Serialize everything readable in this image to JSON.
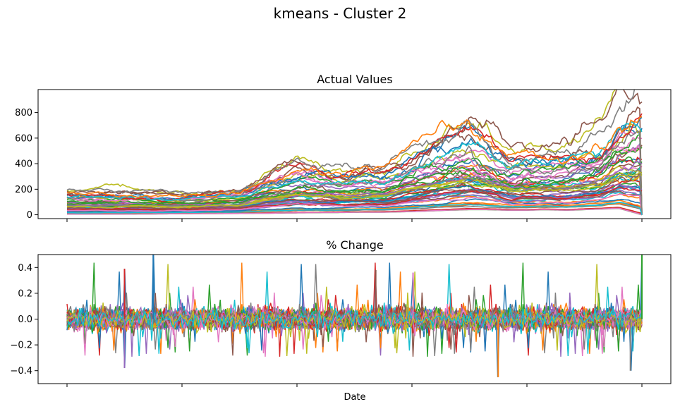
{
  "figure": {
    "title": "kmeans - Cluster 2",
    "xlabel": "Date"
  },
  "colors": [
    "#1f77b4",
    "#ff7f0e",
    "#2ca02c",
    "#d62728",
    "#9467bd",
    "#8c564b",
    "#e377c2",
    "#7f7f7f",
    "#bcbd22",
    "#17becf"
  ],
  "chart_data": [
    {
      "type": "line",
      "title": "Actual Values",
      "ylim": [
        -30,
        980
      ],
      "yticks": [
        "0",
        "200",
        "400",
        "600",
        "800"
      ],
      "ytick_values": [
        0,
        200,
        400,
        600,
        800
      ],
      "x_major_ticks": 6,
      "x_tick_labels_visible": false,
      "grid": false,
      "series_count_approx": 60,
      "envelope": {
        "x_fraction": [
          0,
          0.1,
          0.2,
          0.3,
          0.35,
          0.4,
          0.48,
          0.52,
          0.55,
          0.6,
          0.63,
          0.66,
          0.7,
          0.73,
          0.77,
          0.8,
          0.83,
          0.87,
          0.9,
          0.93,
          0.96,
          1.0
        ],
        "max": [
          190,
          190,
          160,
          200,
          330,
          420,
          350,
          380,
          360,
          500,
          560,
          620,
          720,
          640,
          500,
          520,
          500,
          520,
          560,
          600,
          820,
          950
        ],
        "min": [
          5,
          5,
          8,
          10,
          12,
          15,
          18,
          20,
          20,
          25,
          30,
          35,
          40,
          40,
          35,
          35,
          40,
          35,
          40,
          45,
          50,
          0
        ]
      }
    },
    {
      "type": "line",
      "title": "% Change",
      "ylim": [
        -0.5,
        0.5
      ],
      "yticks": [
        "0.4",
        "0.2",
        "0.0",
        "−0.2",
        "−0.4"
      ],
      "ytick_values": [
        0.4,
        0.2,
        0.0,
        -0.2,
        -0.4
      ],
      "x_major_ticks": 6,
      "x_tick_labels_visible": false,
      "grid": false,
      "series_count_approx": 60,
      "range": {
        "typical_band": [
          -0.1,
          0.1
        ],
        "spikes": [
          {
            "x_fraction": 0.15,
            "value": 0.52
          },
          {
            "x_fraction": 0.75,
            "value": -0.45
          },
          {
            "x_fraction": 1.0,
            "value": 0.52
          },
          {
            "x_fraction": 0.1,
            "value": 0.39
          },
          {
            "x_fraction": 0.1,
            "value": -0.38
          },
          {
            "x_fraction": 0.537,
            "value": 0.38
          },
          {
            "x_fraction": 0.602,
            "value": 0.36
          },
          {
            "x_fraction": 0.98,
            "value": -0.4
          }
        ]
      }
    }
  ]
}
